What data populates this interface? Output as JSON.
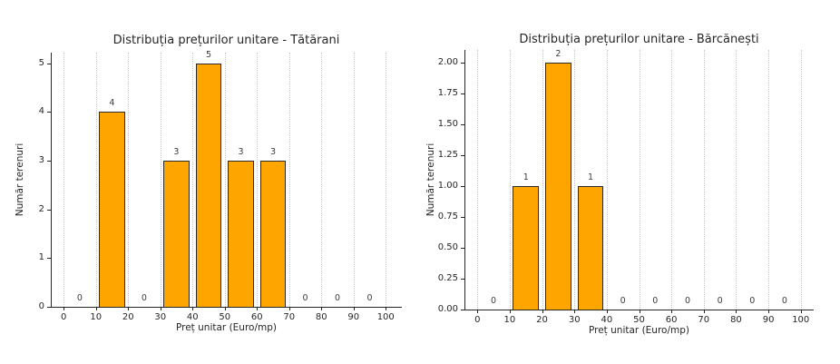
{
  "figure": {
    "background": "#ffffff"
  },
  "chart_data": [
    {
      "type": "bar",
      "title": "Distribuția prețurilor unitare - Tătărani",
      "xlabel": "Preț unitar (Euro/mp)",
      "ylabel": "Număr terenuri",
      "bin_width": 10,
      "bin_centers": [
        5,
        15,
        25,
        35,
        45,
        55,
        65,
        75,
        85,
        95
      ],
      "values": [
        0,
        4,
        0,
        3,
        5,
        3,
        3,
        0,
        0,
        0
      ],
      "bar_value_labels": [
        "0",
        "4",
        "0",
        "3",
        "5",
        "3",
        "3",
        "0",
        "0",
        "0"
      ],
      "x_tick_values": [
        0,
        10,
        20,
        30,
        40,
        50,
        60,
        70,
        80,
        90,
        100
      ],
      "x_tick_labels": [
        "0",
        "10",
        "20",
        "30",
        "40",
        "50",
        "60",
        "70",
        "80",
        "90",
        "100"
      ],
      "y_tick_values": [
        0,
        1,
        2,
        3,
        4,
        5
      ],
      "y_tick_labels": [
        "0",
        "1",
        "2",
        "3",
        "4",
        "5"
      ],
      "xlim": [
        -4,
        105
      ],
      "ylim": [
        0,
        5.22
      ],
      "bar_width_units": 8,
      "bar_color": "#FFA500",
      "bar_edge_color": "#2b2b2b",
      "grid": {
        "axis": "x",
        "style": "dotted",
        "color": "#c9c9c9"
      },
      "legend": "none"
    },
    {
      "type": "bar",
      "title": "Distribuția prețurilor unitare - Bărcănești",
      "xlabel": "Preț unitar (Euro/mp)",
      "ylabel": "Număr terenuri",
      "bin_width": 10,
      "bin_centers": [
        5,
        15,
        25,
        35,
        45,
        55,
        65,
        75,
        85,
        95
      ],
      "values": [
        0,
        1,
        2,
        1,
        0,
        0,
        0,
        0,
        0,
        0
      ],
      "bar_value_labels": [
        "0",
        "1",
        "2",
        "1",
        "0",
        "0",
        "0",
        "0",
        "0",
        "0"
      ],
      "x_tick_values": [
        0,
        10,
        20,
        30,
        40,
        50,
        60,
        70,
        80,
        90,
        100
      ],
      "x_tick_labels": [
        "0",
        "10",
        "20",
        "30",
        "40",
        "50",
        "60",
        "70",
        "80",
        "90",
        "100"
      ],
      "y_tick_values": [
        0,
        0.25,
        0.5,
        0.75,
        1,
        1.25,
        1.5,
        1.75,
        2
      ],
      "y_tick_labels": [
        "0.00",
        "0.25",
        "0.50",
        "0.75",
        "1.00",
        "1.25",
        "1.50",
        "1.75",
        "2.00"
      ],
      "xlim": [
        -4,
        104
      ],
      "ylim": [
        0,
        2.1
      ],
      "bar_width_units": 8,
      "bar_color": "#FFA500",
      "bar_edge_color": "#2b2b2b",
      "grid": {
        "axis": "x",
        "style": "dotted",
        "color": "#c9c9c9"
      },
      "legend": "none"
    }
  ]
}
